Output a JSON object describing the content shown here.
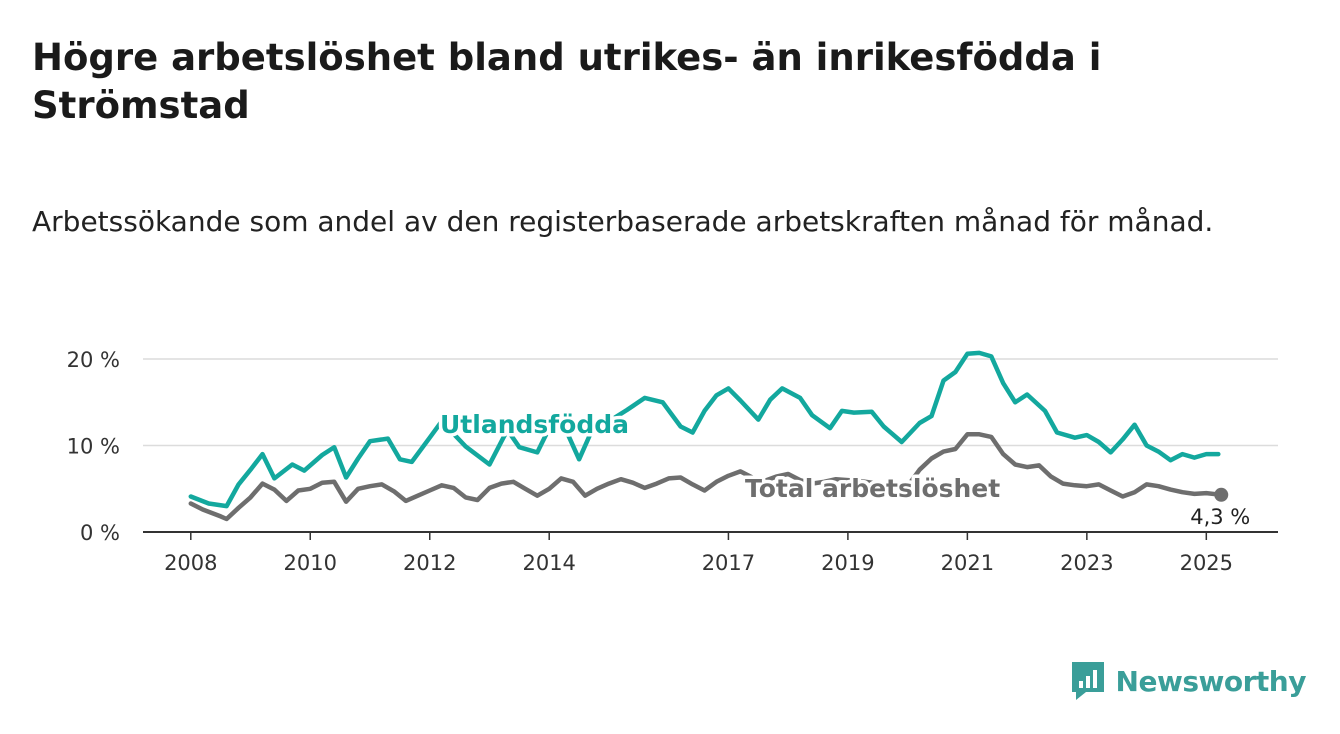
{
  "title": "Högre arbetslöshet bland utrikes- än inrikesfödda i Strömstad",
  "subtitle": "Arbetssökande som andel av den registerbaserade arbetskraften månad för månad.",
  "brand": "Newsworthy",
  "colors": {
    "foreign_born": "#13a89e",
    "total": "#6e6e6e",
    "brand": "#3a9e99"
  },
  "chart_data": {
    "type": "line",
    "title": "Högre arbetslöshet bland utrikes- än inrikesfödda i Strömstad",
    "subtitle": "Arbetssökande som andel av den registerbaserade arbetskraften månad för månad.",
    "x_unit": "year (monthly data, fractional years)",
    "xlim": [
      2007.2,
      2026.2
    ],
    "ylim": [
      0,
      20
    ],
    "y_ticks": [
      0,
      10,
      20
    ],
    "y_tick_labels": [
      "0 %",
      "10 %",
      "20 %"
    ],
    "x_ticks": [
      2008,
      2010,
      2012,
      2014,
      2017,
      2019,
      2021,
      2023,
      2025
    ],
    "x_tick_labels": [
      "2008",
      "2010",
      "2012",
      "2014",
      "2017",
      "2019",
      "2021",
      "2023",
      "2025"
    ],
    "grid": true,
    "end_label": "4,3 %",
    "series": [
      {
        "name": "Utlandsfödda",
        "x": [
          2008.0,
          2008.3,
          2008.6,
          2008.8,
          2009.0,
          2009.2,
          2009.4,
          2009.7,
          2009.9,
          2010.2,
          2010.4,
          2010.6,
          2010.8,
          2011.0,
          2011.3,
          2011.5,
          2011.7,
          2012.0,
          2012.2,
          2012.6,
          2013.0,
          2013.3,
          2013.5,
          2013.8,
          2014.0,
          2014.2,
          2014.5,
          2014.7,
          2015.0,
          2015.3,
          2015.6,
          2015.9,
          2016.2,
          2016.4,
          2016.6,
          2016.8,
          2017.0,
          2017.2,
          2017.5,
          2017.7,
          2017.9,
          2018.2,
          2018.4,
          2018.7,
          2018.9,
          2019.1,
          2019.4,
          2019.6,
          2019.9,
          2020.2,
          2020.4,
          2020.6,
          2020.8,
          2021.0,
          2021.2,
          2021.4,
          2021.6,
          2021.8,
          2022.0,
          2022.3,
          2022.5,
          2022.8,
          2023.0,
          2023.2,
          2023.4,
          2023.6,
          2023.8,
          2024.0,
          2024.2,
          2024.4,
          2024.6,
          2024.8,
          2025.0,
          2025.2
        ],
        "y": [
          4.1,
          3.3,
          3.0,
          5.5,
          7.2,
          9.0,
          6.2,
          7.8,
          7.1,
          8.9,
          9.8,
          6.3,
          8.5,
          10.5,
          10.8,
          8.4,
          8.1,
          10.9,
          12.8,
          9.9,
          7.8,
          11.8,
          9.8,
          9.2,
          12.0,
          13.0,
          8.4,
          11.5,
          12.8,
          14.1,
          15.5,
          15.0,
          12.2,
          11.5,
          14.0,
          15.8,
          16.6,
          15.2,
          13.0,
          15.3,
          16.6,
          15.5,
          13.5,
          12.0,
          14.0,
          13.8,
          13.9,
          12.2,
          10.4,
          12.6,
          13.4,
          17.5,
          18.5,
          20.6,
          20.7,
          20.3,
          17.2,
          15.0,
          15.9,
          14.0,
          11.5,
          10.9,
          11.2,
          10.4,
          9.2,
          10.7,
          12.4,
          10.0,
          9.3,
          8.3,
          9.0,
          8.6,
          9.0,
          9.0
        ]
      },
      {
        "name": "Total arbetslöshet",
        "x": [
          2008.0,
          2008.2,
          2008.5,
          2008.6,
          2008.8,
          2009.0,
          2009.2,
          2009.4,
          2009.6,
          2009.8,
          2010.0,
          2010.2,
          2010.4,
          2010.6,
          2010.8,
          2011.0,
          2011.2,
          2011.4,
          2011.6,
          2011.8,
          2012.0,
          2012.2,
          2012.4,
          2012.6,
          2012.8,
          2013.0,
          2013.2,
          2013.4,
          2013.6,
          2013.8,
          2014.0,
          2014.2,
          2014.4,
          2014.6,
          2014.8,
          2015.0,
          2015.2,
          2015.4,
          2015.6,
          2015.8,
          2016.0,
          2016.2,
          2016.4,
          2016.6,
          2016.8,
          2017.0,
          2017.2,
          2017.4,
          2017.6,
          2017.8,
          2018.0,
          2018.2,
          2018.4,
          2018.6,
          2018.8,
          2019.0,
          2019.2,
          2019.4,
          2019.6,
          2019.8,
          2020.0,
          2020.2,
          2020.4,
          2020.6,
          2020.8,
          2021.0,
          2021.2,
          2021.4,
          2021.6,
          2021.8,
          2022.0,
          2022.2,
          2022.4,
          2022.6,
          2022.8,
          2023.0,
          2023.2,
          2023.4,
          2023.6,
          2023.8,
          2024.0,
          2024.2,
          2024.4,
          2024.6,
          2024.8,
          2025.0,
          2025.25
        ],
        "y": [
          3.3,
          2.6,
          1.8,
          1.5,
          2.8,
          4.0,
          5.6,
          4.9,
          3.6,
          4.8,
          5.0,
          5.7,
          5.8,
          3.5,
          5.0,
          5.3,
          5.5,
          4.7,
          3.6,
          4.2,
          4.8,
          5.4,
          5.1,
          4.0,
          3.7,
          5.1,
          5.6,
          5.8,
          5.0,
          4.2,
          5.0,
          6.2,
          5.8,
          4.2,
          5.0,
          5.6,
          6.1,
          5.7,
          5.1,
          5.6,
          6.2,
          6.3,
          5.5,
          4.8,
          5.8,
          6.5,
          7.0,
          6.3,
          5.9,
          6.4,
          6.7,
          6.0,
          5.6,
          5.8,
          6.1,
          6.0,
          5.9,
          5.7,
          5.1,
          4.8,
          5.3,
          7.2,
          8.5,
          9.3,
          9.6,
          11.3,
          11.3,
          11.0,
          9.0,
          7.8,
          7.5,
          7.7,
          6.4,
          5.6,
          5.4,
          5.3,
          5.5,
          4.8,
          4.1,
          4.6,
          5.5,
          5.3,
          4.9,
          4.6,
          4.4,
          4.5,
          4.3
        ]
      }
    ]
  }
}
